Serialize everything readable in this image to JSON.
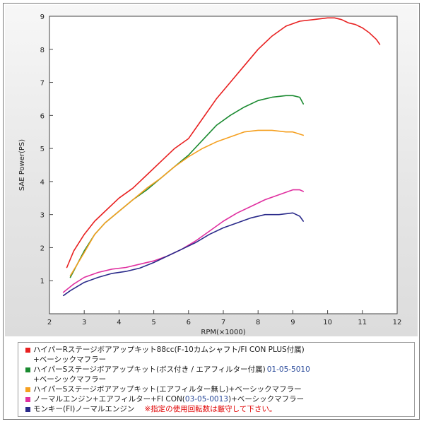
{
  "chart_data": {
    "type": "line",
    "xlabel": "RPM(×1000)",
    "ylabel": "SAE Power(PS)",
    "xlim": [
      2,
      12
    ],
    "ylim": [
      0,
      9
    ],
    "xticks": [
      "2",
      "3",
      "4",
      "5",
      "6",
      "7",
      "8",
      "9",
      "10",
      "11",
      "12"
    ],
    "yticks": [
      "1",
      "2",
      "3",
      "4",
      "5",
      "6",
      "7",
      "8",
      "9"
    ],
    "grid": false,
    "series": [
      {
        "color": "#e82020",
        "x": [
          2.5,
          2.7,
          3.0,
          3.3,
          3.6,
          4.0,
          4.4,
          4.8,
          5.2,
          5.6,
          6.0,
          6.4,
          6.8,
          7.2,
          7.6,
          8.0,
          8.4,
          8.8,
          9.2,
          9.6,
          10.0,
          10.2,
          10.4,
          10.6,
          10.8,
          11.0,
          11.2,
          11.4,
          11.5
        ],
        "y": [
          1.4,
          1.9,
          2.4,
          2.8,
          3.1,
          3.5,
          3.8,
          4.2,
          4.6,
          5.0,
          5.3,
          5.9,
          6.5,
          7.0,
          7.5,
          8.0,
          8.4,
          8.7,
          8.85,
          8.9,
          8.95,
          8.95,
          8.9,
          8.8,
          8.75,
          8.65,
          8.5,
          8.3,
          8.15
        ]
      },
      {
        "color": "#1a8a30",
        "x": [
          2.6,
          2.8,
          3.0,
          3.3,
          3.6,
          4.0,
          4.4,
          4.8,
          5.2,
          5.6,
          6.0,
          6.4,
          6.8,
          7.2,
          7.6,
          8.0,
          8.4,
          8.8,
          9.0,
          9.2,
          9.3
        ],
        "y": [
          1.1,
          1.5,
          1.9,
          2.4,
          2.75,
          3.1,
          3.45,
          3.75,
          4.1,
          4.45,
          4.8,
          5.25,
          5.7,
          6.0,
          6.25,
          6.45,
          6.55,
          6.6,
          6.6,
          6.55,
          6.35
        ]
      },
      {
        "color": "#f5a020",
        "x": [
          2.6,
          2.8,
          3.0,
          3.3,
          3.6,
          4.0,
          4.4,
          4.8,
          5.2,
          5.6,
          6.0,
          6.4,
          6.8,
          7.2,
          7.6,
          8.0,
          8.4,
          8.8,
          9.0,
          9.3
        ],
        "y": [
          1.15,
          1.5,
          1.85,
          2.4,
          2.75,
          3.1,
          3.45,
          3.8,
          4.1,
          4.45,
          4.75,
          5.0,
          5.2,
          5.35,
          5.5,
          5.55,
          5.55,
          5.5,
          5.5,
          5.4
        ]
      },
      {
        "color": "#e030a0",
        "x": [
          2.4,
          2.7,
          3.0,
          3.4,
          3.8,
          4.2,
          4.6,
          5.0,
          5.4,
          5.8,
          6.2,
          6.6,
          7.0,
          7.4,
          7.8,
          8.2,
          8.6,
          9.0,
          9.2,
          9.3
        ],
        "y": [
          0.65,
          0.9,
          1.1,
          1.25,
          1.35,
          1.4,
          1.5,
          1.6,
          1.75,
          1.95,
          2.2,
          2.5,
          2.8,
          3.05,
          3.25,
          3.45,
          3.6,
          3.75,
          3.75,
          3.7
        ]
      },
      {
        "color": "#2a2a8a",
        "x": [
          2.4,
          2.6,
          3.0,
          3.4,
          3.8,
          4.2,
          4.6,
          5.0,
          5.4,
          5.8,
          6.2,
          6.6,
          7.0,
          7.4,
          7.8,
          8.2,
          8.6,
          9.0,
          9.2,
          9.3
        ],
        "y": [
          0.55,
          0.7,
          0.95,
          1.1,
          1.22,
          1.28,
          1.38,
          1.55,
          1.75,
          1.95,
          2.15,
          2.4,
          2.6,
          2.75,
          2.9,
          3.0,
          3.0,
          3.05,
          2.95,
          2.8
        ]
      }
    ]
  },
  "legend": {
    "entries": [
      {
        "color": "#e82020",
        "line1": "ハイパーRステージボアアップキット88cc(F-10カムシャフト/FI CON PLUS付属)",
        "line2": "+ベーシックマフラー",
        "code": "",
        "note": ""
      },
      {
        "color": "#1a8a30",
        "line1": "ハイパーSステージボアアップキット(ボス付き / エアフィルター付属)",
        "code": "01-05-5010",
        "line2": "+ベーシックマフラー",
        "note": ""
      },
      {
        "color": "#f5a020",
        "line1": "ハイパーSステージボアアップキット(エアフィルター無し)+ベーシックマフラー",
        "code": "",
        "line2": "",
        "note": ""
      },
      {
        "color": "#e030a0",
        "line1": "ノーマルエンジン+エアフィルター+FI CON(",
        "code": "03-05-0013",
        "line1b": ")+ベーシックマフラー",
        "line2": "",
        "note": ""
      },
      {
        "color": "#2a2a8a",
        "line1": "モンキー(FI)ノーマルエンジン",
        "code": "",
        "line2": "",
        "note": "※指定の使用回転数は厳守して下さい。"
      }
    ]
  }
}
